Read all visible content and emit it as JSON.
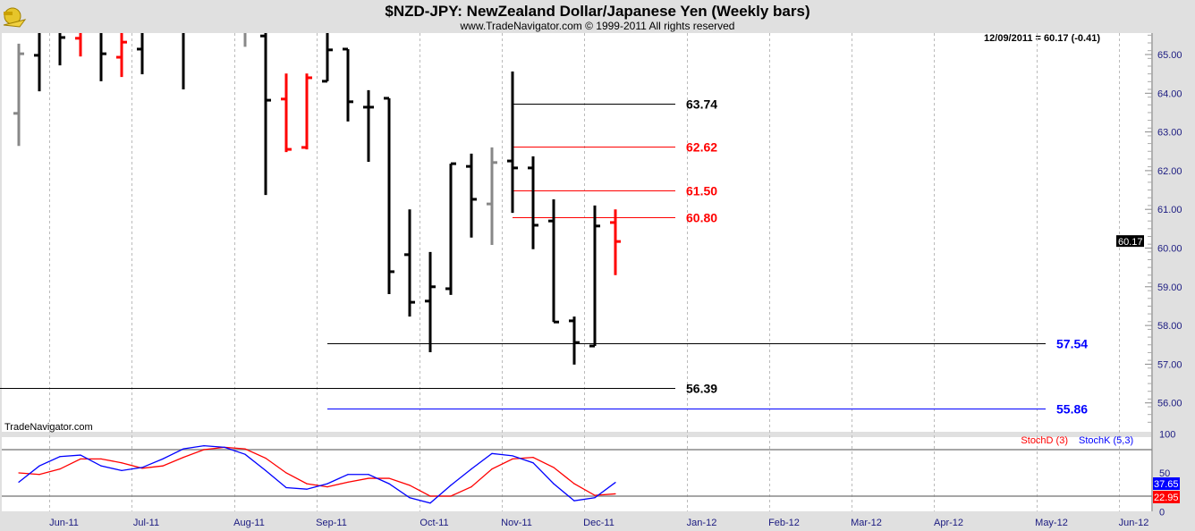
{
  "header": {
    "title": "$NZD-JPY:  NewZealand Dollar/Japanese Yen  (Weekly bars)",
    "subtitle": "www.TradeNavigator.com © 1999-2011 All rights reserved",
    "last_quote": "12/09/2011 = 60.17 (-0.41)",
    "watermark": "TradeNavigator.com"
  },
  "colors": {
    "up": "#000000",
    "down": "#ff0000",
    "neutral": "#888888",
    "stochK": "#0000ff",
    "stochD": "#ff0000",
    "axis_text": "#1a1a80"
  },
  "chart_data": [
    {
      "type": "ohlc",
      "title": "$NZD-JPY Weekly bars",
      "ylim": [
        55.5,
        65.55
      ],
      "y_ticks": [
        "65.00",
        "64.00",
        "63.00",
        "62.00",
        "61.00",
        "60.00",
        "59.00",
        "58.00",
        "57.00",
        "56.00"
      ],
      "last_price_label": "60.17",
      "x_unit": "week index",
      "x_ticks": [
        {
          "x": 1.5,
          "label": "Jun-11"
        },
        {
          "x": 5.5,
          "label": "Jul-11"
        },
        {
          "x": 10.5,
          "label": "Aug-11"
        },
        {
          "x": 14.5,
          "label": "Sep-11"
        },
        {
          "x": 19.5,
          "label": "Oct-11"
        },
        {
          "x": 23.5,
          "label": "Nov-11"
        },
        {
          "x": 27.5,
          "label": "Dec-11"
        },
        {
          "x": 32.5,
          "label": "Jan-12"
        },
        {
          "x": 36.5,
          "label": "Feb-12"
        },
        {
          "x": 40.5,
          "label": "Mar-12"
        },
        {
          "x": 44.5,
          "label": "Apr-12"
        },
        {
          "x": 49.5,
          "label": "May-12"
        },
        {
          "x": 53.5,
          "label": "Jun-12"
        }
      ],
      "bars": [
        {
          "i": 0,
          "o": 63.48,
          "h": 65.28,
          "l": 62.64,
          "c": 65.02,
          "color": "neutral"
        },
        {
          "i": 1,
          "o": 64.98,
          "h": 66.0,
          "l": 64.05,
          "c": 65.8,
          "color": "up"
        },
        {
          "i": 2,
          "o": 66.0,
          "h": 66.0,
          "l": 64.72,
          "c": 65.44,
          "color": "up"
        },
        {
          "i": 3,
          "o": 65.42,
          "h": 66.0,
          "l": 64.95,
          "c": 65.6,
          "color": "down"
        },
        {
          "i": 4,
          "o": 66.0,
          "h": 66.0,
          "l": 64.31,
          "c": 65.02,
          "color": "up"
        },
        {
          "i": 5,
          "o": 64.93,
          "h": 66.0,
          "l": 64.42,
          "c": 65.32,
          "color": "down"
        },
        {
          "i": 6,
          "o": 65.14,
          "h": 66.0,
          "l": 64.49,
          "c": 66.0,
          "color": "up"
        },
        {
          "i": 8,
          "o": 66.0,
          "h": 66.0,
          "l": 64.1,
          "c": 66.0,
          "color": "up"
        },
        {
          "i": 11,
          "o": 66.0,
          "h": 66.0,
          "l": 65.2,
          "c": 66.0,
          "color": "neutral"
        },
        {
          "i": 12,
          "o": 65.48,
          "h": 66.0,
          "l": 61.37,
          "c": 63.82,
          "color": "up"
        },
        {
          "i": 13,
          "o": 63.85,
          "h": 64.51,
          "l": 62.48,
          "c": 62.55,
          "color": "down"
        },
        {
          "i": 14,
          "o": 62.6,
          "h": 64.51,
          "l": 62.55,
          "c": 64.4,
          "color": "down"
        },
        {
          "i": 15,
          "o": 64.31,
          "h": 66.0,
          "l": 64.31,
          "c": 65.12,
          "color": "up"
        },
        {
          "i": 16,
          "o": 65.14,
          "h": 65.14,
          "l": 63.27,
          "c": 63.78,
          "color": "up"
        },
        {
          "i": 17,
          "o": 63.64,
          "h": 64.08,
          "l": 62.23,
          "c": 63.64,
          "color": "up"
        },
        {
          "i": 18,
          "o": 63.87,
          "h": 63.87,
          "l": 58.81,
          "c": 59.39,
          "color": "up"
        },
        {
          "i": 19,
          "o": 59.83,
          "h": 61.0,
          "l": 58.23,
          "c": 58.6,
          "color": "up"
        },
        {
          "i": 20,
          "o": 58.63,
          "h": 59.9,
          "l": 57.31,
          "c": 59.0,
          "color": "up"
        },
        {
          "i": 21,
          "o": 58.95,
          "h": 62.18,
          "l": 58.79,
          "c": 62.18,
          "color": "up"
        },
        {
          "i": 22,
          "o": 62.11,
          "h": 62.44,
          "l": 60.27,
          "c": 61.26,
          "color": "up"
        },
        {
          "i": 23,
          "o": 61.14,
          "h": 62.6,
          "l": 60.08,
          "c": 62.21,
          "color": "neutral"
        },
        {
          "i": 24,
          "o": 62.25,
          "h": 64.56,
          "l": 60.91,
          "c": 62.07,
          "color": "up"
        },
        {
          "i": 25,
          "o": 62.07,
          "h": 62.37,
          "l": 59.97,
          "c": 60.59,
          "color": "up"
        },
        {
          "i": 26,
          "o": 60.7,
          "h": 61.26,
          "l": 58.09,
          "c": 58.09,
          "color": "up"
        },
        {
          "i": 27,
          "o": 58.12,
          "h": 58.23,
          "l": 56.99,
          "c": 57.56,
          "color": "up"
        },
        {
          "i": 28,
          "o": 57.47,
          "h": 61.1,
          "l": 57.47,
          "c": 60.57,
          "color": "up"
        },
        {
          "i": 29,
          "o": 60.66,
          "h": 61.0,
          "l": 59.3,
          "c": 60.17,
          "color": "down"
        }
      ],
      "levels": [
        {
          "price": 63.74,
          "label": "63.74",
          "from": 24,
          "to": 32,
          "line": "#000000",
          "text": "#000000"
        },
        {
          "price": 62.62,
          "label": "62.62",
          "from": 24,
          "to": 32,
          "line": "#ff0000",
          "text": "#ff0000"
        },
        {
          "price": 61.5,
          "label": "61.50",
          "from": 24,
          "to": 32,
          "line": "#ff0000",
          "text": "#ff0000"
        },
        {
          "price": 60.8,
          "label": "60.80",
          "from": 24,
          "to": 32,
          "line": "#ff0000",
          "text": "#ff0000"
        },
        {
          "price": 57.54,
          "label": "57.54",
          "from": 15,
          "to": 50,
          "line": "#000000",
          "text": "#0000ff"
        },
        {
          "price": 56.39,
          "label": "56.39",
          "from": -1,
          "to": 32,
          "line": "#000000",
          "text": "#000000"
        },
        {
          "price": 55.86,
          "label": "55.86",
          "from": 15,
          "to": 50,
          "line": "#0000ff",
          "text": "#0000ff"
        }
      ]
    },
    {
      "type": "line",
      "title": "Stochastic",
      "ylim": [
        0,
        100
      ],
      "y_ticks": [
        "100",
        "50",
        "0"
      ],
      "ref_lines": [
        80,
        20
      ],
      "series": [
        {
          "name": "StochD (3)",
          "color": "#ff0000",
          "last_label": "22.95",
          "values": [
            50,
            48,
            55,
            68,
            68,
            63,
            56,
            59,
            70,
            80,
            83,
            81,
            69,
            50,
            36,
            32,
            38,
            43,
            43,
            34,
            20,
            20,
            32,
            55,
            68,
            70,
            57,
            36,
            21,
            22.95
          ]
        },
        {
          "name": "StochK (5,3)",
          "color": "#0000ff",
          "last_label": "37.65",
          "values": [
            38,
            59,
            71,
            73,
            59,
            53,
            57,
            68,
            81,
            85,
            83,
            74,
            53,
            31,
            29,
            36,
            48,
            48,
            36,
            18,
            11,
            34,
            55,
            75,
            72,
            63,
            36,
            14,
            18,
            37.65
          ]
        }
      ]
    }
  ]
}
